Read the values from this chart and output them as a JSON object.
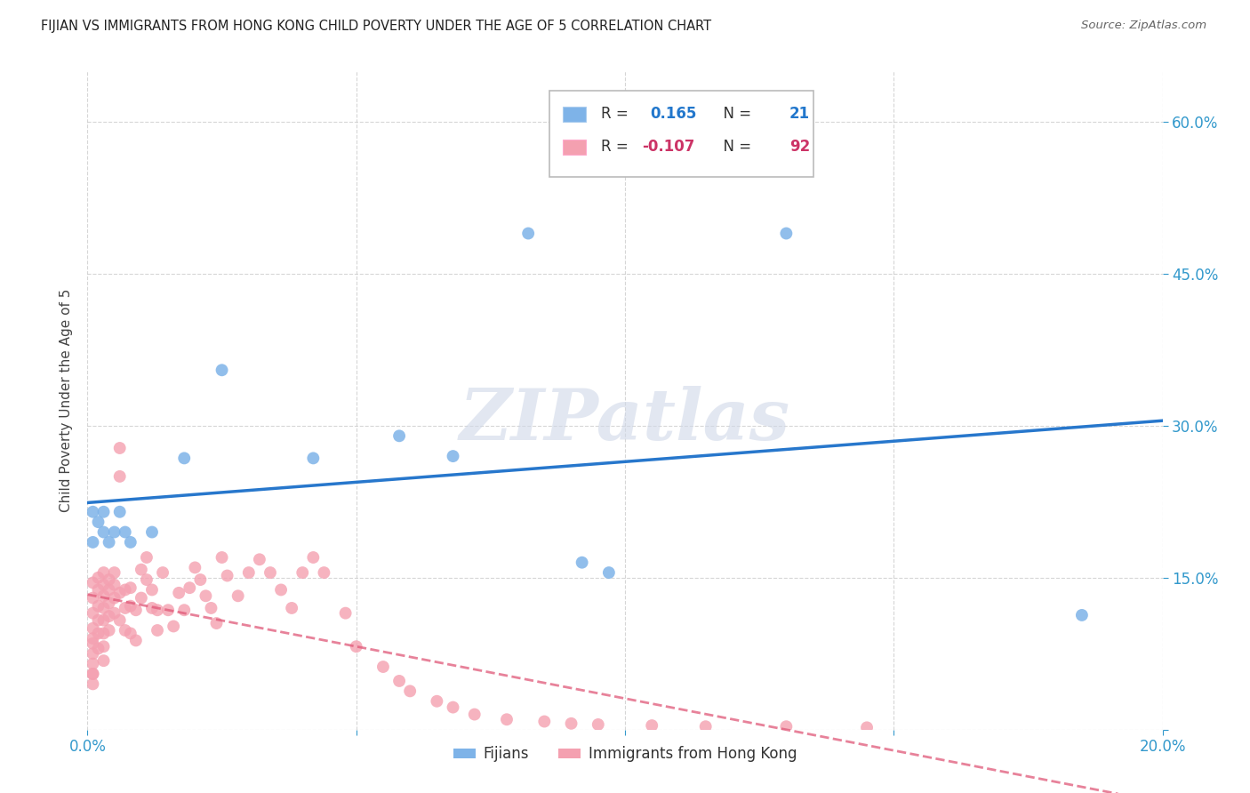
{
  "title": "FIJIAN VS IMMIGRANTS FROM HONG KONG CHILD POVERTY UNDER THE AGE OF 5 CORRELATION CHART",
  "source": "Source: ZipAtlas.com",
  "ylabel": "Child Poverty Under the Age of 5",
  "x_min": 0.0,
  "x_max": 0.2,
  "y_min": 0.0,
  "y_max": 0.65,
  "x_ticks": [
    0.0,
    0.05,
    0.1,
    0.15,
    0.2
  ],
  "x_tick_labels": [
    "0.0%",
    "",
    "",
    "",
    "20.0%"
  ],
  "y_ticks": [
    0.0,
    0.15,
    0.3,
    0.45,
    0.6
  ],
  "y_tick_labels": [
    "",
    "15.0%",
    "30.0%",
    "45.0%",
    "60.0%"
  ],
  "background_color": "#ffffff",
  "grid_color": "#cccccc",
  "watermark_text": "ZIPatlas",
  "fijian_color": "#7EB3E8",
  "hk_color": "#F4A0B0",
  "fijian_line_color": "#2777CC",
  "hk_line_color": "#E05878",
  "fijians_label": "Fijians",
  "hk_label": "Immigrants from Hong Kong",
  "fijian_R": 0.165,
  "fijian_N": 21,
  "hk_R": -0.107,
  "hk_N": 92,
  "fijian_x": [
    0.001,
    0.001,
    0.002,
    0.003,
    0.003,
    0.004,
    0.005,
    0.006,
    0.007,
    0.008,
    0.012,
    0.018,
    0.025,
    0.042,
    0.058,
    0.068,
    0.082,
    0.092,
    0.097,
    0.13,
    0.185
  ],
  "fijian_y": [
    0.215,
    0.185,
    0.205,
    0.195,
    0.215,
    0.185,
    0.195,
    0.215,
    0.195,
    0.185,
    0.195,
    0.268,
    0.355,
    0.268,
    0.29,
    0.27,
    0.49,
    0.165,
    0.155,
    0.49,
    0.113
  ],
  "hk_x": [
    0.001,
    0.001,
    0.001,
    0.001,
    0.001,
    0.001,
    0.001,
    0.001,
    0.001,
    0.001,
    0.001,
    0.002,
    0.002,
    0.002,
    0.002,
    0.002,
    0.002,
    0.003,
    0.003,
    0.003,
    0.003,
    0.003,
    0.003,
    0.003,
    0.003,
    0.004,
    0.004,
    0.004,
    0.004,
    0.004,
    0.005,
    0.005,
    0.005,
    0.005,
    0.006,
    0.006,
    0.006,
    0.006,
    0.007,
    0.007,
    0.007,
    0.008,
    0.008,
    0.008,
    0.009,
    0.009,
    0.01,
    0.01,
    0.011,
    0.011,
    0.012,
    0.012,
    0.013,
    0.013,
    0.014,
    0.015,
    0.016,
    0.017,
    0.018,
    0.019,
    0.02,
    0.021,
    0.022,
    0.023,
    0.024,
    0.025,
    0.026,
    0.028,
    0.03,
    0.032,
    0.034,
    0.036,
    0.038,
    0.04,
    0.042,
    0.044,
    0.048,
    0.05,
    0.055,
    0.058,
    0.06,
    0.065,
    0.068,
    0.072,
    0.078,
    0.085,
    0.09,
    0.095,
    0.105,
    0.115,
    0.13,
    0.145
  ],
  "hk_y": [
    0.145,
    0.13,
    0.115,
    0.1,
    0.09,
    0.085,
    0.075,
    0.065,
    0.055,
    0.055,
    0.045,
    0.15,
    0.138,
    0.122,
    0.108,
    0.095,
    0.08,
    0.155,
    0.143,
    0.132,
    0.12,
    0.108,
    0.095,
    0.082,
    0.068,
    0.148,
    0.138,
    0.125,
    0.112,
    0.098,
    0.155,
    0.143,
    0.13,
    0.115,
    0.278,
    0.25,
    0.135,
    0.108,
    0.138,
    0.12,
    0.098,
    0.14,
    0.122,
    0.095,
    0.118,
    0.088,
    0.158,
    0.13,
    0.17,
    0.148,
    0.138,
    0.12,
    0.118,
    0.098,
    0.155,
    0.118,
    0.102,
    0.135,
    0.118,
    0.14,
    0.16,
    0.148,
    0.132,
    0.12,
    0.105,
    0.17,
    0.152,
    0.132,
    0.155,
    0.168,
    0.155,
    0.138,
    0.12,
    0.155,
    0.17,
    0.155,
    0.115,
    0.082,
    0.062,
    0.048,
    0.038,
    0.028,
    0.022,
    0.015,
    0.01,
    0.008,
    0.006,
    0.005,
    0.004,
    0.003,
    0.003,
    0.002
  ]
}
